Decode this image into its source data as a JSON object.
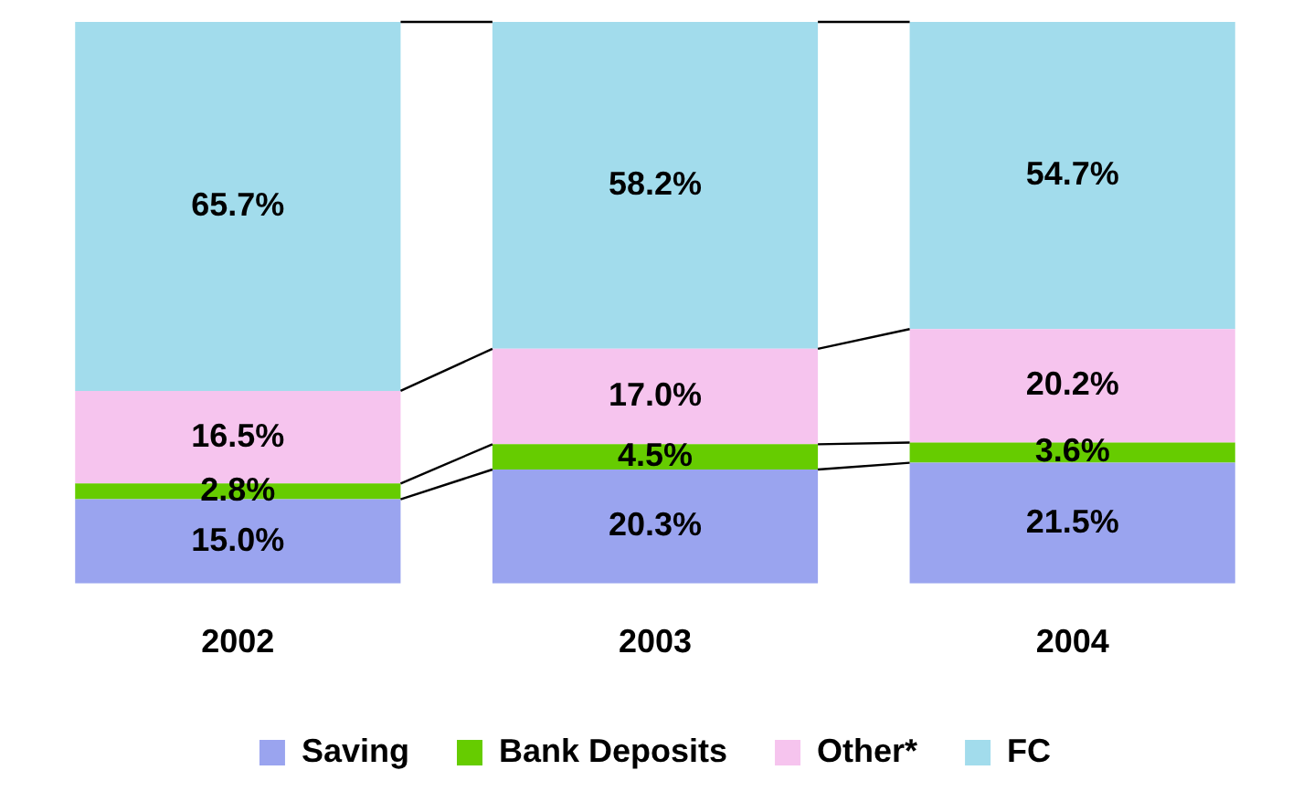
{
  "chart_data": {
    "type": "bar",
    "stacked": true,
    "tick_labels": "x",
    "categories": [
      "2002",
      "2003",
      "2004"
    ],
    "legend": "bottom",
    "series": [
      {
        "name": "Saving",
        "color": "#9aa4ef",
        "values": [
          15.0,
          20.3,
          21.5
        ],
        "value_labels": [
          "15.0%",
          "20.3%",
          "21.5%"
        ]
      },
      {
        "name": "Bank Deposits",
        "color": "#66cc00",
        "values": [
          2.8,
          4.5,
          3.6
        ],
        "value_labels": [
          "2.8%",
          "4.5%",
          "3.6%"
        ]
      },
      {
        "name": "Other*",
        "color": "#f6c4ee",
        "values": [
          16.5,
          17.0,
          20.2
        ],
        "value_labels": [
          "16.5%",
          "17.0%",
          "20.2%"
        ]
      },
      {
        "name": "FC",
        "color": "#a2dcec",
        "values": [
          65.7,
          58.2,
          54.7
        ],
        "value_labels": [
          "65.7%",
          "58.2%",
          "54.7%"
        ]
      }
    ]
  }
}
